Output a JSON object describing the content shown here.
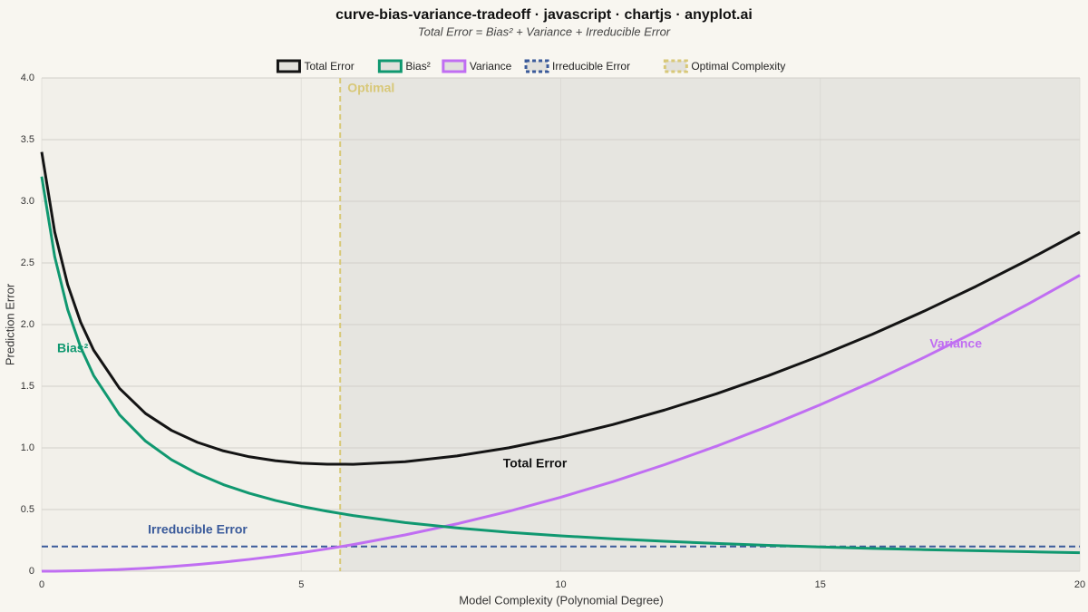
{
  "chart_data": {
    "type": "line",
    "title": "curve-bias-variance-tradeoff · javascript · chartjs · anyplot.ai",
    "subtitle": "Total Error = Bias² + Variance + Irreducible Error",
    "x_label": "Model Complexity (Polynomial Degree)",
    "y_label": "Prediction Error",
    "x": [
      0,
      0.25,
      0.5,
      0.75,
      1,
      1.5,
      2,
      2.5,
      3,
      3.5,
      4,
      4.5,
      5,
      5.5,
      6,
      7,
      8,
      9,
      10,
      11,
      12,
      13,
      14,
      15,
      16,
      17,
      18,
      19,
      20
    ],
    "series": [
      {
        "name": "Total Error",
        "color": "#141414",
        "values": [
          3.4,
          2.752,
          2.324,
          2.019,
          1.793,
          1.482,
          1.279,
          1.142,
          1.045,
          0.976,
          0.928,
          0.896,
          0.876,
          0.868,
          0.867,
          0.888,
          0.935,
          1.001,
          1.087,
          1.189,
          1.307,
          1.439,
          1.586,
          1.747,
          1.921,
          2.109,
          2.31,
          2.524,
          2.75
        ]
      },
      {
        "name": "Bias²",
        "color": "#109870",
        "values": [
          3.2,
          2.552,
          2.122,
          1.816,
          1.587,
          1.268,
          1.055,
          0.904,
          0.791,
          0.702,
          0.632,
          0.574,
          0.526,
          0.486,
          0.451,
          0.394,
          0.351,
          0.315,
          0.287,
          0.263,
          0.243,
          0.225,
          0.21,
          0.197,
          0.185,
          0.175,
          0.166,
          0.158,
          0.15
        ]
      },
      {
        "name": "Variance",
        "color": "#c06ef2",
        "values": [
          0,
          0.0004,
          0.0015,
          0.0034,
          0.006,
          0.0135,
          0.024,
          0.0375,
          0.054,
          0.0735,
          0.096,
          0.1215,
          0.15,
          0.1815,
          0.216,
          0.294,
          0.384,
          0.486,
          0.6,
          0.726,
          0.864,
          1.014,
          1.176,
          1.35,
          1.536,
          1.734,
          1.944,
          2.166,
          2.4
        ]
      }
    ],
    "irreducible": {
      "name": "Irreducible Error",
      "color": "#3a5a9a",
      "value": 0.2
    },
    "optimal": {
      "name": "Optimal Complexity",
      "color": "#d8c878",
      "value": 5.75
    },
    "annotations": [
      "Optimal",
      "Bias²",
      "Variance",
      "Total Error",
      "Irreducible Error"
    ],
    "xlim": [
      0,
      20
    ],
    "xticks": [
      0,
      5,
      10,
      15,
      20
    ],
    "ylim": [
      0,
      4
    ],
    "yticks": [
      0,
      0.5,
      {
        "value": 1,
        "label": "1.0"
      },
      1.5,
      {
        "value": 2,
        "label": "2.0"
      },
      2.5,
      {
        "value": 3,
        "label": "3.0"
      },
      3.5,
      {
        "value": 4,
        "label": "4.0"
      }
    ],
    "grid": true
  }
}
